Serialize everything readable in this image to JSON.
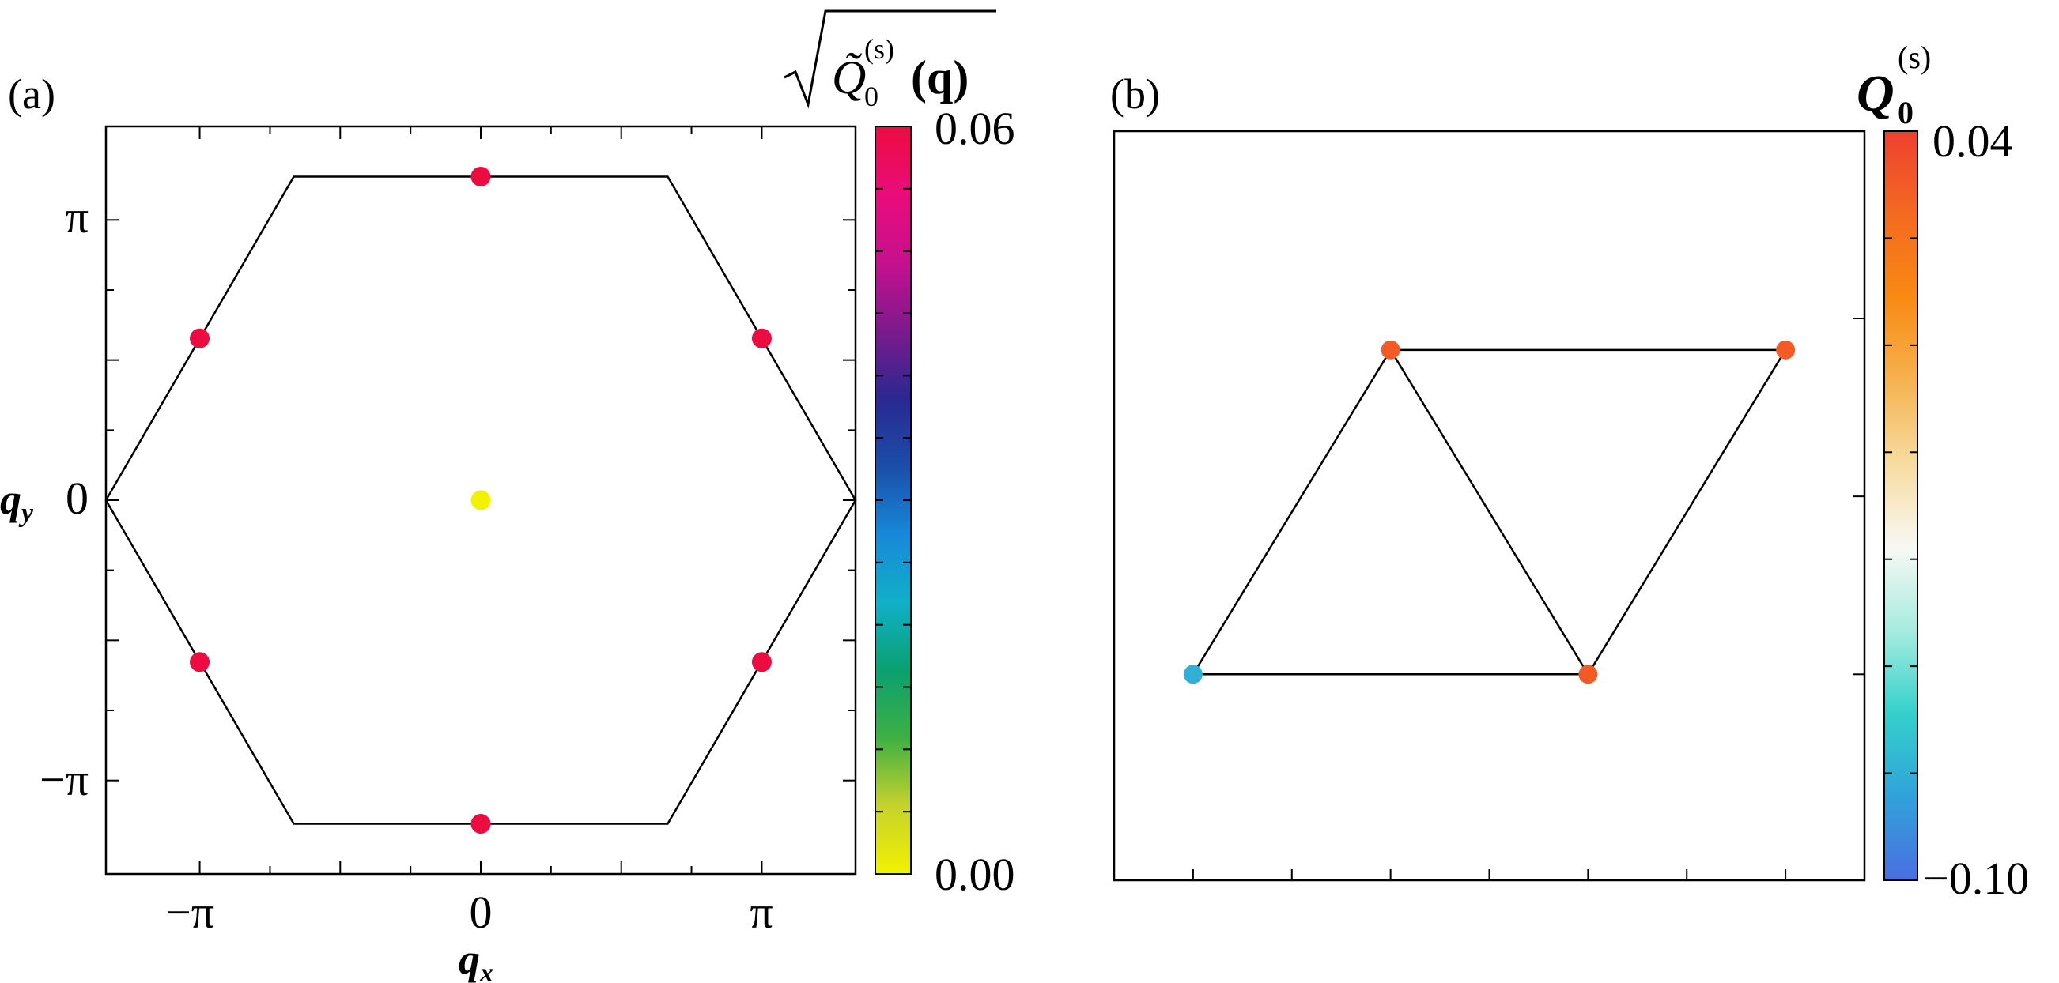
{
  "panel_a": {
    "label": "(a)",
    "colorbar_title": {
      "sqrt": "√",
      "symbol": "Q̃",
      "subscript": "0",
      "superscript": "(s)",
      "argument": "(q)"
    },
    "colorbar": {
      "max_label": "0.06",
      "min_label": "0.00",
      "colors": [
        "#f2f200",
        "#c6d22c",
        "#3fb043",
        "#0aa070",
        "#10b0c8",
        "#1888d8",
        "#1a4ea8",
        "#2a2890",
        "#7c1a8c",
        "#c6108e",
        "#ea0c7a",
        "#ec0c40"
      ]
    }
  },
  "panel_b": {
    "label": "(b)",
    "colorbar_title": {
      "symbol": "Q",
      "subscript": "0",
      "superscript": "(s)"
    },
    "colorbar": {
      "max_label": "0.04",
      "min_label": "−0.10",
      "colors": [
        "#4a6ee0",
        "#30a2da",
        "#34d0cc",
        "#a6ecdf",
        "#f8f8f4",
        "#f7dca0",
        "#f6b250",
        "#f88a12",
        "#f46a20",
        "#ee4030"
      ]
    }
  },
  "chart_data": [
    {
      "type": "scatter",
      "title": "√Q̃0(s)(q)",
      "xlabel": "q_x",
      "ylabel": "q_y",
      "x_ticks": [
        "−π",
        "0",
        "π"
      ],
      "y_ticks": [
        "π",
        "0",
        "−π"
      ],
      "xlim": [
        -4.19,
        4.19
      ],
      "ylim": [
        -4.19,
        4.19
      ],
      "brillouin_zone": {
        "vertices": [
          [
            4.19,
            0
          ],
          [
            2.09,
            3.628
          ],
          [
            -2.09,
            3.628
          ],
          [
            -4.19,
            0
          ],
          [
            -2.09,
            -3.628
          ],
          [
            2.09,
            -3.628
          ]
        ]
      },
      "colorbar_range": [
        0.0,
        0.06
      ],
      "points": [
        {
          "x": 0,
          "y": 3.628,
          "value": 0.06
        },
        {
          "x": 3.142,
          "y": 1.814,
          "value": 0.06
        },
        {
          "x": 3.142,
          "y": -1.814,
          "value": 0.06
        },
        {
          "x": 0,
          "y": -3.628,
          "value": 0.06
        },
        {
          "x": -3.142,
          "y": -1.814,
          "value": 0.06
        },
        {
          "x": -3.142,
          "y": 1.814,
          "value": 0.06
        },
        {
          "x": 0,
          "y": 0,
          "value": 0.0
        }
      ]
    },
    {
      "type": "scatter",
      "title": "Q0(s)",
      "xlabel": "",
      "ylabel": "",
      "xlim": [
        -0.2,
        1.7
      ],
      "ylim": [
        -0.55,
        1.45
      ],
      "bonds": [
        [
          0,
          1
        ],
        [
          0,
          2
        ],
        [
          1,
          2
        ],
        [
          1,
          3
        ],
        [
          2,
          3
        ]
      ],
      "colorbar_range": [
        -0.1,
        0.04
      ],
      "points": [
        {
          "x": 0.0,
          "y": 0.0,
          "value": -0.08
        },
        {
          "x": 0.5,
          "y": 0.866,
          "value": 0.03
        },
        {
          "x": 1.0,
          "y": 0.0,
          "value": 0.03
        },
        {
          "x": 1.5,
          "y": 0.866,
          "value": 0.03
        }
      ]
    }
  ]
}
